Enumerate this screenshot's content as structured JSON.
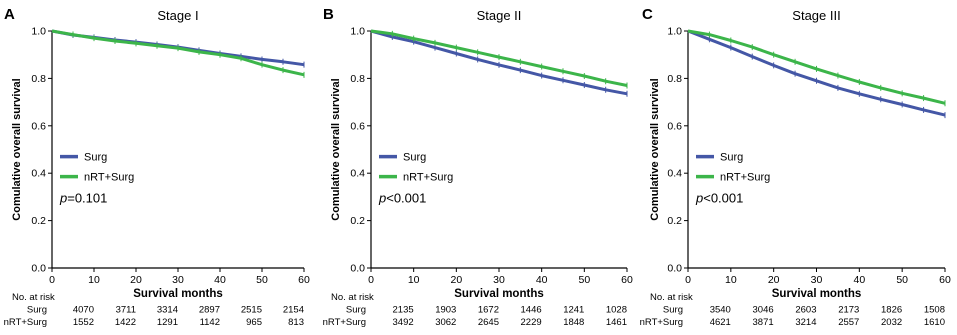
{
  "chart_data": [
    {
      "type": "line",
      "panel_letter": "A",
      "title": "Stage I",
      "ylabel": "Comulative overall survival",
      "xlabel": "Survival months",
      "xlim": [
        0,
        60
      ],
      "ylim": [
        0,
        1.0
      ],
      "xticks": [
        "0",
        "10",
        "20",
        "30",
        "40",
        "50",
        "60"
      ],
      "yticks": [
        "0.0",
        "0.2",
        "0.4",
        "0.6",
        "0.8",
        "1.0"
      ],
      "x": [
        0,
        5,
        10,
        15,
        20,
        25,
        30,
        35,
        40,
        45,
        50,
        55,
        60
      ],
      "series": [
        {
          "name": "Surg",
          "color": "#4457a6",
          "values": [
            1.0,
            0.983,
            0.973,
            0.962,
            0.953,
            0.943,
            0.932,
            0.918,
            0.905,
            0.893,
            0.88,
            0.87,
            0.858
          ]
        },
        {
          "name": "nRT+Surg",
          "color": "#3cb54a",
          "values": [
            1.0,
            0.985,
            0.97,
            0.958,
            0.948,
            0.938,
            0.928,
            0.912,
            0.9,
            0.885,
            0.858,
            0.835,
            0.815
          ]
        }
      ],
      "legend_position": "lower-left",
      "pvalue_prefix": "p",
      "pvalue_text": "=0.101",
      "risk_title": "No. at risk",
      "risk_table": [
        {
          "label": "Surg",
          "values": [
            "4070",
            "3711",
            "3314",
            "2897",
            "2515",
            "2154"
          ]
        },
        {
          "label": "nRT+Surg",
          "values": [
            "1552",
            "1422",
            "1291",
            "1142",
            "965",
            "813"
          ]
        }
      ]
    },
    {
      "type": "line",
      "panel_letter": "B",
      "title": "Stage II",
      "ylabel": "Comulative overall survival",
      "xlabel": "Survival months",
      "xlim": [
        0,
        60
      ],
      "ylim": [
        0,
        1.0
      ],
      "xticks": [
        "0",
        "10",
        "20",
        "30",
        "40",
        "50",
        "60"
      ],
      "yticks": [
        "0.0",
        "0.2",
        "0.4",
        "0.6",
        "0.8",
        "1.0"
      ],
      "x": [
        0,
        5,
        10,
        15,
        20,
        25,
        30,
        35,
        40,
        45,
        50,
        55,
        60
      ],
      "series": [
        {
          "name": "Surg",
          "color": "#4457a6",
          "values": [
            1.0,
            0.975,
            0.955,
            0.93,
            0.905,
            0.88,
            0.857,
            0.835,
            0.812,
            0.792,
            0.772,
            0.752,
            0.735
          ]
        },
        {
          "name": "nRT+Surg",
          "color": "#3cb54a",
          "values": [
            1.0,
            0.988,
            0.968,
            0.95,
            0.93,
            0.91,
            0.89,
            0.87,
            0.85,
            0.83,
            0.81,
            0.788,
            0.77
          ]
        }
      ],
      "legend_position": "lower-left",
      "pvalue_prefix": "p",
      "pvalue_text": "<0.001",
      "risk_title": "No. at risk",
      "risk_table": [
        {
          "label": "Surg",
          "values": [
            "2135",
            "1903",
            "1672",
            "1446",
            "1241",
            "1028"
          ]
        },
        {
          "label": "nRT+Surg",
          "values": [
            "3492",
            "3062",
            "2645",
            "2229",
            "1848",
            "1461"
          ]
        }
      ]
    },
    {
      "type": "line",
      "panel_letter": "C",
      "title": "Stage III",
      "ylabel": "Comulative overall survival",
      "xlabel": "Survival months",
      "xlim": [
        0,
        60
      ],
      "ylim": [
        0,
        1.0
      ],
      "xticks": [
        "0",
        "10",
        "20",
        "30",
        "40",
        "50",
        "60"
      ],
      "yticks": [
        "0.0",
        "0.2",
        "0.4",
        "0.6",
        "0.8",
        "1.0"
      ],
      "x": [
        0,
        5,
        10,
        15,
        20,
        25,
        30,
        35,
        40,
        45,
        50,
        55,
        60
      ],
      "series": [
        {
          "name": "Surg",
          "color": "#4457a6",
          "values": [
            1.0,
            0.965,
            0.93,
            0.892,
            0.855,
            0.82,
            0.79,
            0.76,
            0.735,
            0.712,
            0.69,
            0.667,
            0.645
          ]
        },
        {
          "name": "nRT+Surg",
          "color": "#3cb54a",
          "values": [
            1.0,
            0.985,
            0.96,
            0.932,
            0.9,
            0.87,
            0.84,
            0.812,
            0.785,
            0.76,
            0.737,
            0.717,
            0.695
          ]
        }
      ],
      "legend_position": "lower-left",
      "pvalue_prefix": "p",
      "pvalue_text": "<0.001",
      "risk_title": "No. at risk",
      "risk_table": [
        {
          "label": "Surg",
          "values": [
            "3540",
            "3046",
            "2603",
            "2173",
            "1826",
            "1508"
          ]
        },
        {
          "label": "nRT+Surg",
          "values": [
            "4621",
            "3871",
            "3214",
            "2557",
            "2032",
            "1610"
          ]
        }
      ]
    }
  ]
}
